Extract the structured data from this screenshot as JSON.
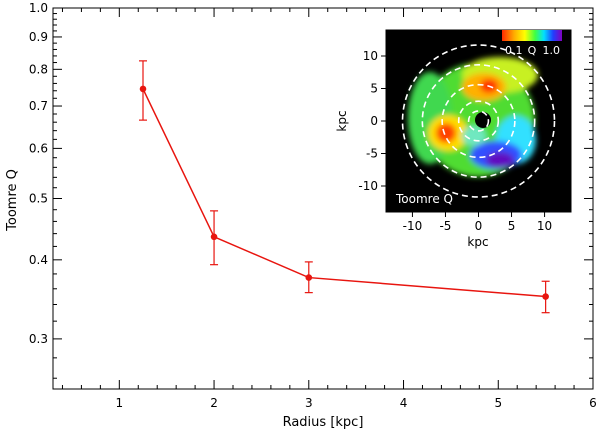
{
  "chart_data": [
    {
      "type": "line",
      "xlabel": "Radius [kpc]",
      "ylabel": "Toomre Q",
      "xlim": [
        0.3,
        6
      ],
      "ylim": [
        0.25,
        1.0
      ],
      "y_scale": "log",
      "x_ticks": [
        1,
        2,
        3,
        4,
        5,
        6
      ],
      "x_tick_labels": [
        "1",
        "2",
        "3",
        "4",
        "5",
        "6"
      ],
      "y_ticks": [
        0.3,
        0.4,
        0.5,
        0.6,
        0.7,
        0.8,
        0.9,
        1.0
      ],
      "y_tick_labels": [
        "0.3",
        "0.4",
        "0.5",
        "0.6",
        "0.7",
        "0.8",
        "0.9",
        "1.0"
      ],
      "grid": false,
      "series": [
        {
          "color": "#e8150f",
          "x": [
            1.25,
            2.0,
            3.0,
            5.5
          ],
          "y": [
            0.745,
            0.435,
            0.375,
            0.35
          ],
          "y_err_low": [
            0.665,
            0.393,
            0.355,
            0.33
          ],
          "y_err_high": [
            0.825,
            0.478,
            0.397,
            0.37
          ]
        }
      ]
    },
    {
      "type": "heatmap",
      "title": "Toomre Q",
      "xlabel": "kpc",
      "ylabel": "kpc",
      "xlim": [
        -14,
        14
      ],
      "ylim": [
        -14,
        14
      ],
      "x_ticks": [
        -10,
        -5,
        0,
        5,
        10
      ],
      "x_tick_labels": [
        "-10",
        "-5",
        "0",
        "5",
        "10"
      ],
      "y_ticks": [
        -10,
        -5,
        0,
        5,
        10
      ],
      "y_tick_labels": [
        "-10",
        "-5",
        "0",
        "5",
        "10"
      ],
      "colorbar": {
        "min_label": "0.1",
        "label": "Q",
        "max_label": "1.0",
        "position": "top-right"
      },
      "rings_kpc": [
        1.5,
        3,
        5.5,
        8.5,
        11.5
      ]
    }
  ]
}
